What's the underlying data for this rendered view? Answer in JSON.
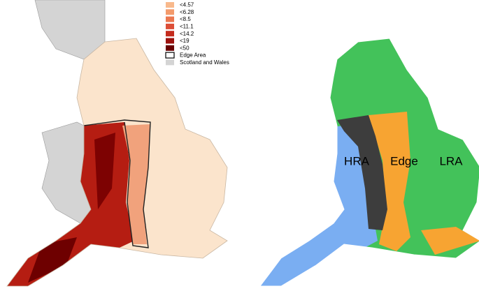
{
  "legend": {
    "items": [
      {
        "label": "<4.57",
        "color": "#f8b98c"
      },
      {
        "label": "<6.28",
        "color": "#f39a6b"
      },
      {
        "label": "<8.5",
        "color": "#eb774f"
      },
      {
        "label": "<11.1",
        "color": "#dc4e37"
      },
      {
        "label": "<14.2",
        "color": "#c42b1d"
      },
      {
        "label": "<19",
        "color": "#9c110d"
      },
      {
        "label": "<50",
        "color": "#680000"
      },
      {
        "label": "Edge Area",
        "color": "#ffffff"
      },
      {
        "label": "Scotland and Wales",
        "color": "#d4d4d4"
      }
    ]
  },
  "regions": {
    "labels": [
      "HRA",
      "Edge",
      "LRA"
    ]
  }
}
